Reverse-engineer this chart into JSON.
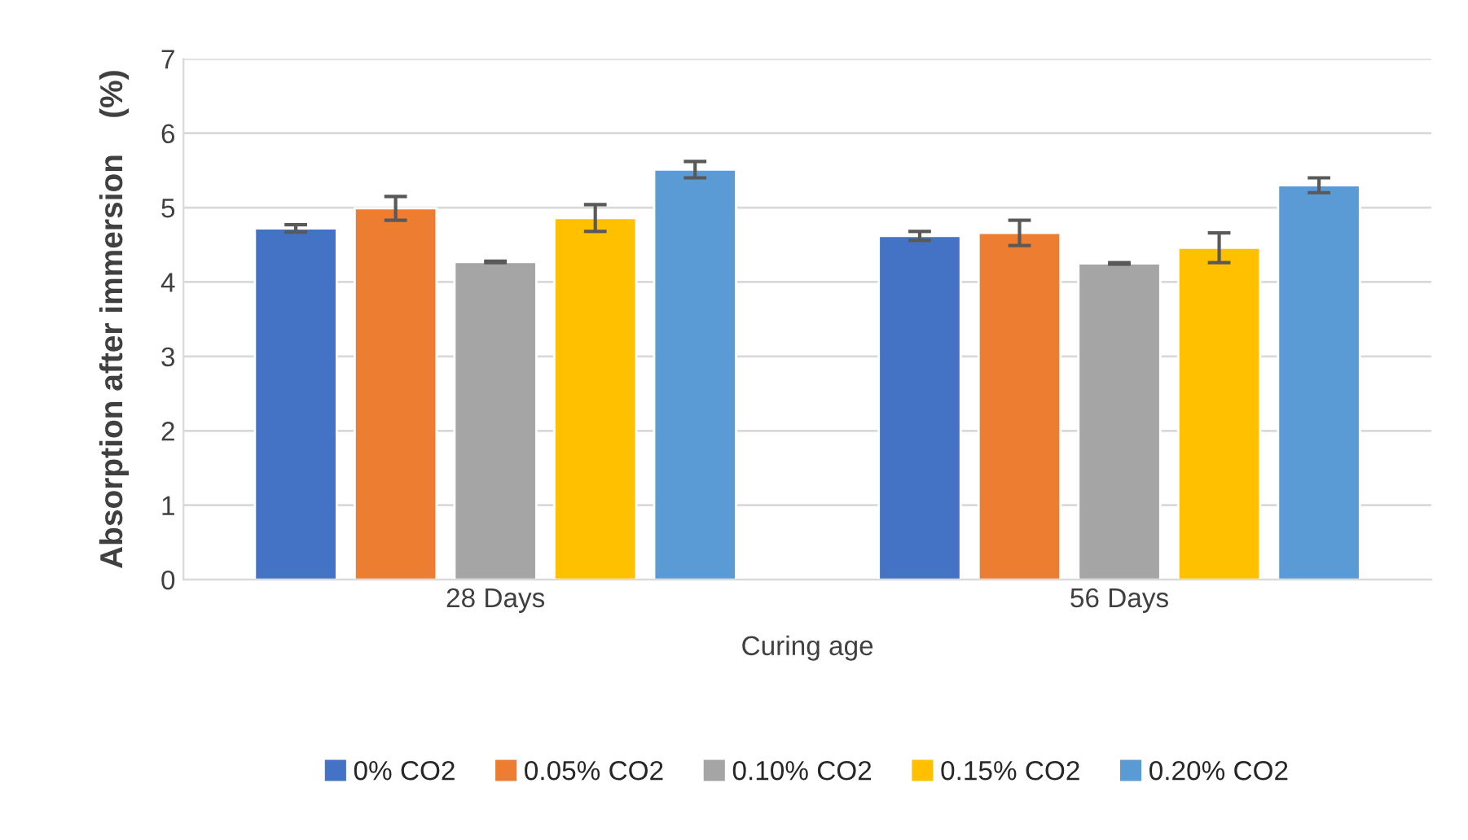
{
  "chart_data": {
    "type": "bar",
    "xlabel": "Curing age",
    "ylabel": "Absorption after immersion    (%)",
    "categories": [
      "28 Days",
      "56 Days"
    ],
    "series": [
      {
        "name": "0% CO2",
        "color": "#4472c4",
        "values": [
          4.72,
          4.62
        ],
        "errors": [
          0.05,
          0.06
        ]
      },
      {
        "name": "0.05% CO2",
        "color": "#ed7d31",
        "values": [
          4.99,
          4.66
        ],
        "errors": [
          0.16,
          0.17
        ]
      },
      {
        "name": "0.10% CO2",
        "color": "#a5a5a5",
        "values": [
          4.27,
          4.25
        ],
        "errors": [
          0.01,
          0.01
        ]
      },
      {
        "name": "0.15% CO2",
        "color": "#ffc000",
        "values": [
          4.86,
          4.46
        ],
        "errors": [
          0.18,
          0.2
        ]
      },
      {
        "name": "0.20% CO2",
        "color": "#5b9bd5",
        "values": [
          5.51,
          5.3
        ],
        "errors": [
          0.11,
          0.1
        ]
      }
    ],
    "ylim": [
      0,
      7
    ],
    "yticks": [
      0,
      1,
      2,
      3,
      4,
      5,
      6,
      7
    ],
    "grid": "y",
    "legend": "bottom"
  }
}
